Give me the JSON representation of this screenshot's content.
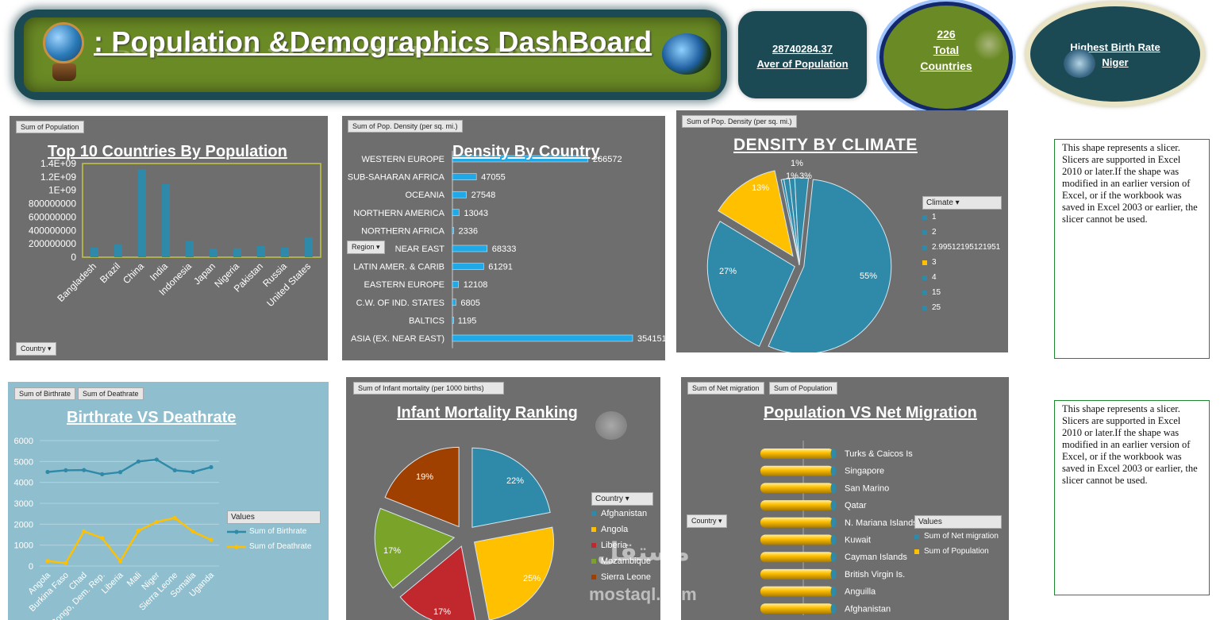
{
  "header": {
    "title": ": Population &Demographics DashBoard"
  },
  "kpis": {
    "avg_value": "28740284.37",
    "avg_label": "Aver of Population",
    "total_value": "226",
    "total_label_1": "Total",
    "total_label_2": "Countries",
    "birth_label": "Highest Birth Rate",
    "birth_value": "Niger"
  },
  "slicers": {
    "text": "This shape represents a slicer. Slicers are supported in Excel 2010 or later.If the shape was modified in an earlier version of Excel, or if the workbook was saved in Excel 2003 or earlier, the slicer cannot be used."
  },
  "watermark": {
    "line1": "مستقل",
    "line2": "mostaql.com"
  },
  "colors": {
    "teal": "#2e8aa8",
    "yellow": "#ffc000",
    "green_banner": "#6a8a25",
    "navy": "#1b4a55"
  },
  "chart_data": [
    {
      "id": "top10",
      "type": "bar",
      "title": "Top 10 Countries By Population",
      "field_button": "Sum of Population",
      "filter_button": "Country",
      "categories": [
        "Bangladesh",
        "Brazil",
        "China",
        "India",
        "Indonesia",
        "Japan",
        "Nigeria",
        "Pakistan",
        "Russia",
        "United States"
      ],
      "values": [
        147000000,
        188000000,
        1314000000,
        1095000000,
        245000000,
        127000000,
        132000000,
        166000000,
        143000000,
        298000000
      ],
      "yticks": [
        "0",
        "200000000",
        "400000000",
        "600000000",
        "800000000",
        "1E+09",
        "1.2E+09",
        "1.4E+09"
      ],
      "ylim": [
        0,
        1400000000
      ]
    },
    {
      "id": "density_country",
      "type": "bar",
      "orientation": "horizontal",
      "title": "Density By Country",
      "field_button": "Sum of Pop. Density (per sq. mi.)",
      "filter_button": "Region",
      "categories": [
        "WESTERN EUROPE",
        "SUB-SAHARAN AFRICA",
        "OCEANIA",
        "NORTHERN AMERICA",
        "NORTHERN AFRICA",
        "NEAR EAST",
        "LATIN AMER. & CARIB",
        "EASTERN EUROPE",
        "C.W. OF IND. STATES",
        "BALTICS",
        "ASIA (EX. NEAR EAST)"
      ],
      "values": [
        266572,
        47055,
        27548,
        13043,
        2336,
        68333,
        61291,
        12108,
        6805,
        1195,
        354151
      ],
      "labels": [
        "266572",
        "47055",
        "27548",
        "13043",
        "2336",
        "68333",
        "61291",
        "12108",
        "6805",
        "1195",
        "354151"
      ]
    },
    {
      "id": "density_climate",
      "type": "pie",
      "title": "DENSITY BY CLIMATE",
      "field_button": "Sum of Pop. Density (per sq. mi.)",
      "legend_title": "Climate",
      "legend": [
        "1",
        "2",
        "2.99512195121951",
        "3",
        "4",
        "15",
        "25"
      ],
      "slices": [
        {
          "label": "55%",
          "value": 55,
          "color": "#2e8aa8"
        },
        {
          "label": "27%",
          "value": 27,
          "color": "#2e8aa8"
        },
        {
          "label": "13%",
          "value": 13,
          "color": "#ffc000"
        },
        {
          "label": "0%",
          "value": 0.5,
          "color": "#2e8aa8"
        },
        {
          "label": "1%",
          "value": 1,
          "color": "#2e8aa8"
        },
        {
          "label": "1%",
          "value": 1,
          "color": "#2e8aa8"
        },
        {
          "label": "3%",
          "value": 2.5,
          "color": "#2e8aa8"
        }
      ]
    },
    {
      "id": "birth_death",
      "type": "line",
      "title": "Birthrate VS Deathrate",
      "field_buttons": [
        "Sum of Birthrate",
        "Sum of Deathrate"
      ],
      "legend_title": "Values",
      "categories": [
        "Angola",
        "Burkina Faso",
        "Chad",
        "Congo, Dem. Rep.",
        "Liberia",
        "Mali",
        "Niger",
        "Sierra Leone",
        "Somalia",
        "Uganda"
      ],
      "series": [
        {
          "name": "Sum of Birthrate",
          "values": [
            4500,
            4580,
            4590,
            4390,
            4490,
            5000,
            5090,
            4580,
            4500,
            4730
          ],
          "color": "#2e8aa8"
        },
        {
          "name": "Sum of Deathrate",
          "values": [
            240,
            140,
            1660,
            1340,
            230,
            1690,
            2110,
            2300,
            1650,
            1250
          ],
          "color": "#ffc000"
        }
      ],
      "yticks": [
        "0",
        "1000",
        "2000",
        "3000",
        "4000",
        "5000",
        "6000"
      ],
      "ylim": [
        0,
        6000
      ]
    },
    {
      "id": "infant",
      "type": "pie",
      "title": "Infant Mortality Ranking",
      "field_button": "Sum of Infant mortality (per 1000 births)",
      "legend_title": "Country",
      "slices": [
        {
          "name": "Afghanistan",
          "label": "22%",
          "value": 22,
          "color": "#2e8aa8"
        },
        {
          "name": "Angola",
          "label": "25%",
          "value": 25,
          "color": "#ffc000"
        },
        {
          "name": "Liberia",
          "label": "17%",
          "value": 17,
          "color": "#c0282d"
        },
        {
          "name": "Mozambique",
          "label": "17%",
          "value": 17,
          "color": "#7aa32a"
        },
        {
          "name": "Sierra Leone",
          "label": "19%",
          "value": 19,
          "color": "#a04000"
        }
      ]
    },
    {
      "id": "migration",
      "type": "bar",
      "orientation": "horizontal",
      "title": "Population VS Net Migration",
      "field_buttons": [
        "Sum of Net migration",
        "Sum of Population"
      ],
      "filter_button": "Country",
      "legend_title": "Values",
      "categories": [
        "Turks & Caicos Is",
        "Singapore",
        "San Marino",
        "Qatar",
        "N. Mariana Islands",
        "Kuwait",
        "Cayman Islands",
        "British Virgin Is.",
        "Anguilla",
        "Afghanistan"
      ],
      "series": [
        {
          "name": "Sum of Net migration",
          "color": "#2e8aa8"
        },
        {
          "name": "Sum of Population",
          "color": "#ffc000"
        }
      ]
    }
  ]
}
